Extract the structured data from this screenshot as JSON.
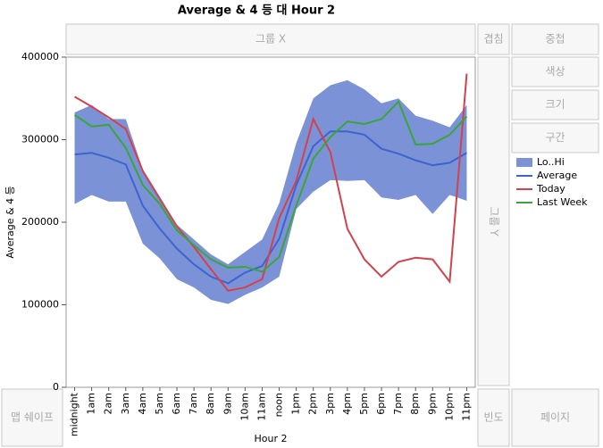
{
  "chart_data": {
    "type": "line",
    "title": "Average & 4 등 대 Hour 2",
    "x_label": "Hour 2",
    "y_label": "Average & 4 등",
    "categories": [
      "midnight",
      "1am",
      "2am",
      "3am",
      "4am",
      "5am",
      "6am",
      "7am",
      "8am",
      "9am",
      "10am",
      "11am",
      "noon",
      "1pm",
      "2pm",
      "3pm",
      "4pm",
      "5pm",
      "6pm",
      "7pm",
      "8pm",
      "9pm",
      "10pm",
      "11pm"
    ],
    "ylim": [
      0,
      400000
    ],
    "yticks": [
      0,
      100000,
      200000,
      300000,
      400000
    ],
    "band": {
      "name": "Lo..Hi",
      "color": "#7b93d6",
      "high": [
        333000,
        342000,
        325000,
        325000,
        264000,
        231000,
        197000,
        179000,
        161000,
        149000,
        164000,
        179000,
        223000,
        296000,
        350000,
        366000,
        372000,
        361000,
        344000,
        350000,
        329000,
        323000,
        315000,
        342000
      ],
      "low": [
        222000,
        233000,
        225000,
        225000,
        174000,
        156000,
        131000,
        121000,
        106000,
        101000,
        112000,
        121000,
        134000,
        216000,
        237000,
        251000,
        250000,
        251000,
        230000,
        227000,
        233000,
        210000,
        233000,
        226000
      ]
    },
    "series": [
      {
        "name": "Average",
        "color": "#3c64d0",
        "values": [
          282000,
          284000,
          278000,
          270000,
          220000,
          192000,
          168000,
          149000,
          134000,
          126000,
          139000,
          147000,
          180000,
          245000,
          292000,
          310000,
          310000,
          306000,
          289000,
          283000,
          275000,
          269000,
          272000,
          284000
        ]
      },
      {
        "name": "Today",
        "color": "#d2424d",
        "values": [
          352000,
          340000,
          327000,
          313000,
          262000,
          228000,
          195000,
          170000,
          143000,
          117000,
          121000,
          131000,
          205000,
          250000,
          325000,
          285000,
          192000,
          155000,
          134000,
          152000,
          157000,
          155000,
          128000,
          380000
        ]
      },
      {
        "name": "Last Week",
        "color": "#3aa53a",
        "values": [
          330000,
          316000,
          318000,
          290000,
          245000,
          222000,
          190000,
          172000,
          155000,
          145000,
          146000,
          140000,
          158000,
          220000,
          277000,
          303000,
          322000,
          319000,
          325000,
          346000,
          294000,
          295000,
          306000,
          328000
        ]
      }
    ]
  },
  "ui": {
    "group_x": "그룹 X",
    "overlay": "겹침",
    "nest": "중첩",
    "color": "색상",
    "size": "크기",
    "interval": "구간",
    "group_y": "그룹 Y",
    "map_shape": "맵 쉐이프",
    "freq": "빈도",
    "page": "페이지"
  }
}
